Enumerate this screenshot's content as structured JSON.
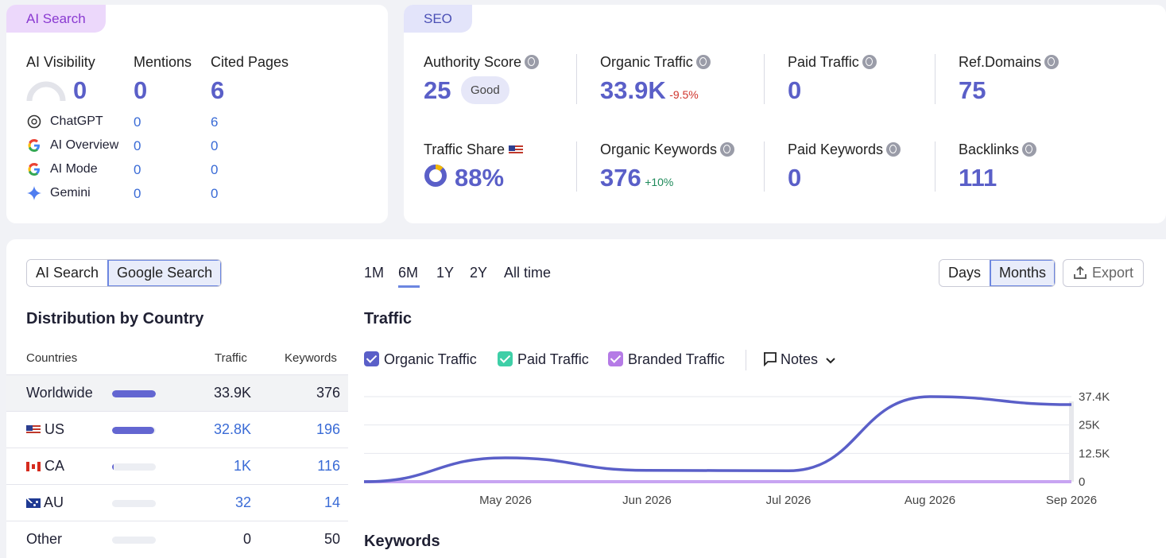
{
  "ai_search": {
    "tag": "AI Search",
    "headers": {
      "visibility": "AI Visibility",
      "mentions": "Mentions",
      "cited": "Cited Pages"
    },
    "totals": {
      "visibility": "0",
      "mentions": "0",
      "cited": "6"
    },
    "rows": [
      {
        "name": "ChatGPT",
        "mentions": "0",
        "cited": "6",
        "icon": "chatgpt-icon"
      },
      {
        "name": "AI Overview",
        "mentions": "0",
        "cited": "0",
        "icon": "google-icon"
      },
      {
        "name": "AI Mode",
        "mentions": "0",
        "cited": "0",
        "icon": "google-icon"
      },
      {
        "name": "Gemini",
        "mentions": "0",
        "cited": "0",
        "icon": "gemini-icon"
      }
    ]
  },
  "seo": {
    "tag": "SEO",
    "authority": {
      "label": "Authority Score",
      "value": "25",
      "badge": "Good"
    },
    "organic_traffic": {
      "label": "Organic Traffic",
      "value": "33.9K",
      "delta": "-9.5%"
    },
    "paid_traffic": {
      "label": "Paid Traffic",
      "value": "0"
    },
    "ref_domains": {
      "label": "Ref.Domains",
      "value": "75"
    },
    "traffic_share": {
      "label": "Traffic Share",
      "value": "88%",
      "percent": 88
    },
    "organic_keywords": {
      "label": "Organic Keywords",
      "value": "376",
      "delta": "+10%"
    },
    "paid_keywords": {
      "label": "Paid Keywords",
      "value": "0"
    },
    "backlinks": {
      "label": "Backlinks",
      "value": "111"
    }
  },
  "bottom": {
    "search_toggle": [
      "AI Search",
      "Google Search"
    ],
    "distribution_title": "Distribution by Country",
    "columns": {
      "countries": "Countries",
      "traffic": "Traffic",
      "keywords": "Keywords"
    },
    "countries": [
      {
        "name": "Worldwide",
        "traffic": "33.9K",
        "keywords": "376",
        "share": 1.0,
        "flag": ""
      },
      {
        "name": "US",
        "traffic": "32.8K",
        "keywords": "196",
        "share": 0.97,
        "flag": "us"
      },
      {
        "name": "CA",
        "traffic": "1K",
        "keywords": "116",
        "share": 0.03,
        "flag": "ca"
      },
      {
        "name": "AU",
        "traffic": "32",
        "keywords": "14",
        "share": 0.0,
        "flag": "au"
      },
      {
        "name": "Other",
        "traffic": "0",
        "keywords": "50",
        "share": 0.0,
        "flag": ""
      }
    ],
    "ranges": [
      "1M",
      "6M",
      "1Y",
      "2Y",
      "All time"
    ],
    "active_range": "6M",
    "granularity": [
      "Days",
      "Months"
    ],
    "export_label": "Export",
    "traffic_title": "Traffic",
    "legend": [
      {
        "label": "Organic Traffic",
        "color": "#5a5fc8"
      },
      {
        "label": "Paid Traffic",
        "color": "#3ecfa7"
      },
      {
        "label": "Branded Traffic",
        "color": "#b57be6"
      }
    ],
    "notes_label": "Notes",
    "keywords_title": "Keywords"
  },
  "chart_data": {
    "type": "line",
    "x": [
      "2026-04",
      "2026-05",
      "2026-06",
      "2026-07",
      "2026-08",
      "2026-09"
    ],
    "x_tick_labels": [
      "May 2026",
      "Jun 2026",
      "Jul 2026",
      "Aug 2026",
      "Sep 2026"
    ],
    "y_tick_labels": [
      "37.4K",
      "25K",
      "12.5K",
      "0"
    ],
    "ylim": [
      0,
      37400
    ],
    "series": [
      {
        "name": "Organic Traffic",
        "color": "#5a5fc8",
        "values": [
          0,
          10500,
          5000,
          4800,
          37400,
          33900
        ]
      },
      {
        "name": "Branded Traffic",
        "color": "#c8a4f2",
        "values": [
          0,
          0,
          0,
          0,
          0,
          0
        ]
      }
    ],
    "grid": true
  }
}
